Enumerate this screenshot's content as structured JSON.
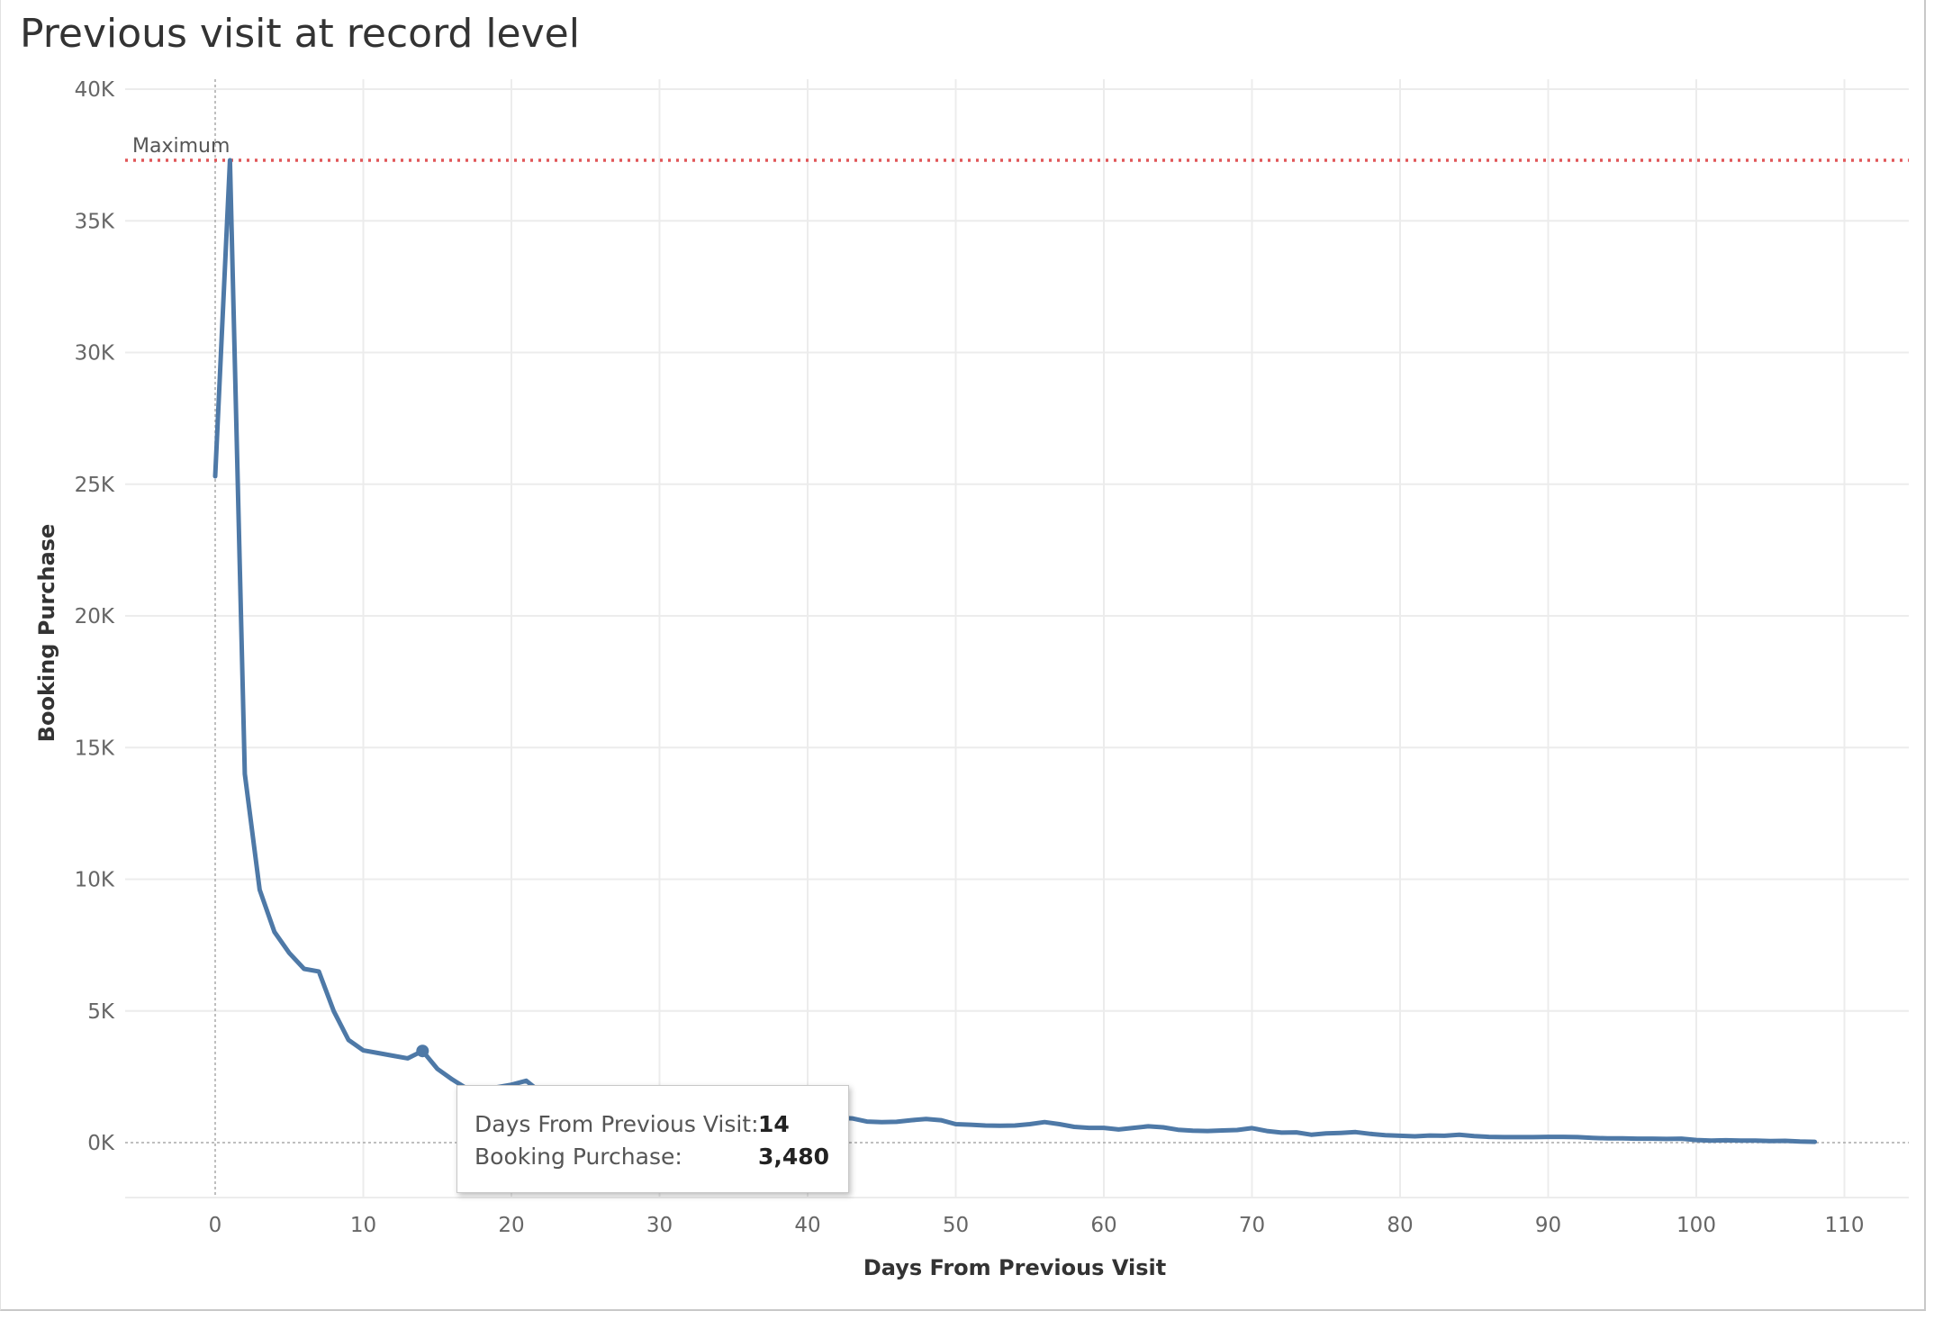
{
  "chart_data": {
    "type": "line",
    "title": "Previous visit at record level",
    "xlabel": "Days From Previous Visit",
    "ylabel": "Booking Purchase",
    "xlim": [
      -6,
      114
    ],
    "ylim": [
      -2000,
      40000
    ],
    "x_ticks": [
      0,
      10,
      20,
      30,
      40,
      50,
      60,
      70,
      80,
      90,
      100,
      110
    ],
    "y_ticks": [
      0,
      5000,
      10000,
      15000,
      20000,
      25000,
      30000,
      35000,
      40000
    ],
    "y_tick_labels": [
      "0K",
      "5K",
      "10K",
      "15K",
      "20K",
      "25K",
      "30K",
      "35K",
      "40K"
    ],
    "grid": true,
    "series_color": "#4e79a7",
    "reference_line": {
      "label": "Maximum",
      "value": 37300,
      "color": "#e15759",
      "style": "dotted"
    },
    "highlight_point": {
      "x": 14,
      "y": 3480
    },
    "x": [
      0,
      1,
      2,
      3,
      4,
      5,
      6,
      7,
      8,
      9,
      10,
      11,
      12,
      13,
      14,
      15,
      16,
      17,
      18,
      19,
      20,
      21,
      22,
      23,
      24,
      25,
      26,
      27,
      28,
      29,
      30,
      31,
      32,
      33,
      34,
      35,
      36,
      37,
      38,
      39,
      40,
      41,
      42,
      43,
      44,
      45,
      46,
      47,
      48,
      49,
      50,
      51,
      52,
      53,
      54,
      55,
      56,
      57,
      58,
      59,
      60,
      61,
      62,
      63,
      64,
      65,
      66,
      67,
      68,
      69,
      70,
      71,
      72,
      73,
      74,
      75,
      76,
      77,
      78,
      79,
      80,
      81,
      82,
      83,
      84,
      85,
      86,
      87,
      88,
      89,
      90,
      91,
      92,
      93,
      94,
      95,
      96,
      97,
      98,
      99,
      100,
      101,
      102,
      103,
      104,
      105,
      106,
      107,
      108
    ],
    "y": [
      25300,
      37300,
      14000,
      9600,
      8000,
      7200,
      6600,
      6500,
      5000,
      3900,
      3500,
      3400,
      3300,
      3200,
      3480,
      2800,
      2400,
      2050,
      1900,
      2100,
      2200,
      2350,
      1900,
      1700,
      1650,
      1550,
      1500,
      1400,
      1350,
      1300,
      1250,
      1200,
      1180,
      1150,
      1120,
      1100,
      1080,
      1060,
      1040,
      1020,
      1000,
      1050,
      950,
      920,
      800,
      780,
      790,
      850,
      900,
      850,
      700,
      680,
      650,
      640,
      650,
      700,
      780,
      700,
      600,
      560,
      560,
      500,
      560,
      620,
      580,
      490,
      450,
      440,
      460,
      480,
      550,
      440,
      380,
      390,
      300,
      350,
      370,
      400,
      330,
      280,
      260,
      240,
      270,
      260,
      300,
      250,
      220,
      210,
      210,
      210,
      220,
      220,
      210,
      180,
      160,
      160,
      150,
      150,
      140,
      150,
      100,
      80,
      90,
      80,
      80,
      60,
      70,
      40,
      30
    ]
  },
  "tooltip": {
    "label_x": "Days From Previous Visit:",
    "value_x": "14",
    "label_y": "Booking Purchase:",
    "value_y": "3,480"
  }
}
